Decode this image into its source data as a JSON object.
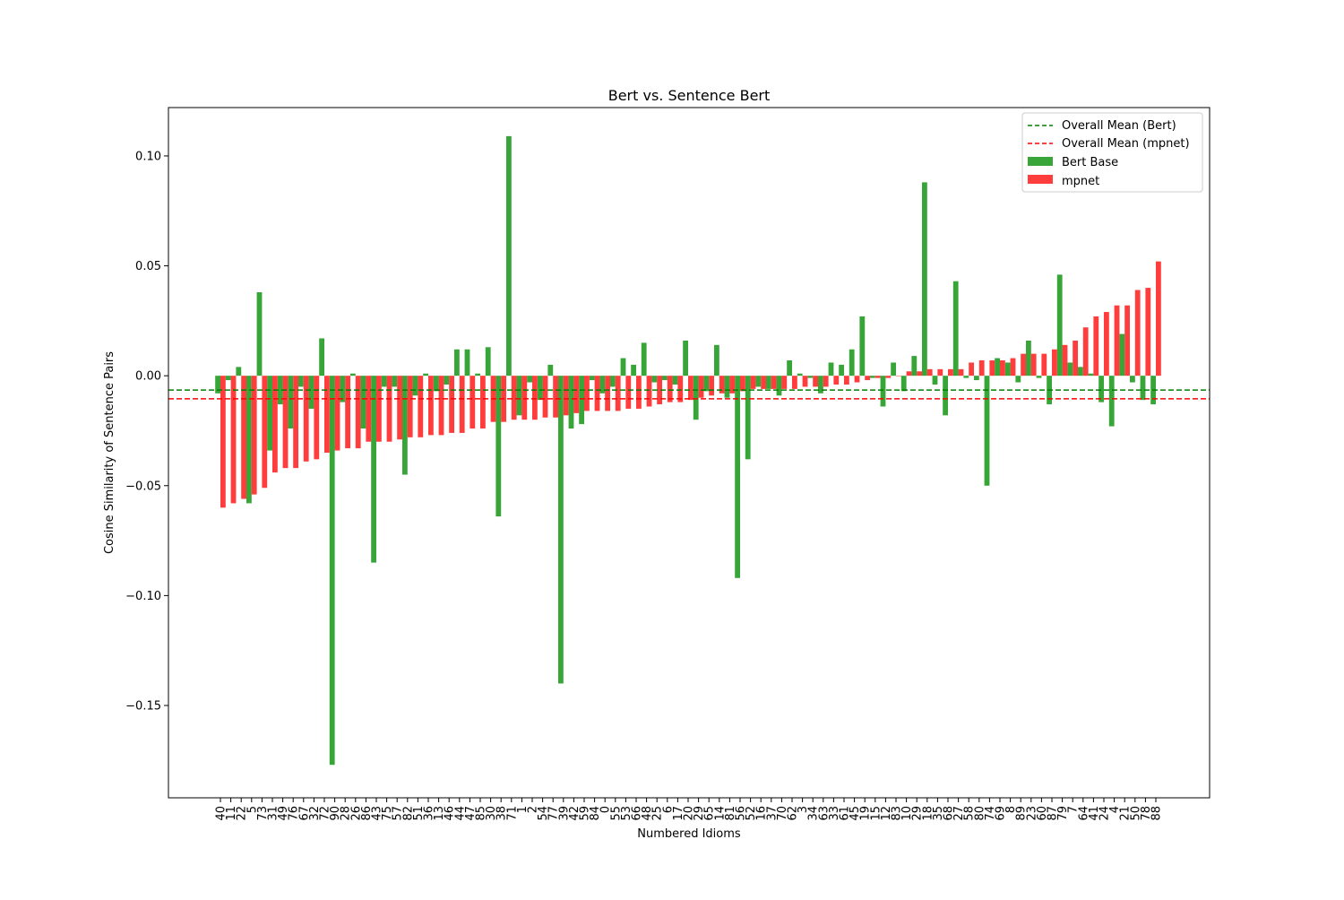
{
  "chart_data": {
    "type": "bar",
    "title": "Bert vs. Sentence Bert",
    "xlabel": "Numbered Idioms",
    "ylabel": "Cosine Similarity of Sentence Pairs",
    "ylim": [
      -0.192,
      0.122
    ],
    "yticks": [
      -0.15,
      -0.1,
      -0.05,
      0.0,
      0.05,
      0.1
    ],
    "ytick_labels": [
      "−0.15",
      "−0.10",
      "−0.05",
      "0.00",
      "0.05",
      "0.10"
    ],
    "grid": false,
    "legend_position": "top-right",
    "categories": [
      "40",
      "11",
      "22",
      "5",
      "73",
      "31",
      "49",
      "76",
      "67",
      "32",
      "72",
      "90",
      "28",
      "26",
      "86",
      "43",
      "75",
      "57",
      "82",
      "51",
      "36",
      "13",
      "46",
      "44",
      "47",
      "85",
      "30",
      "38",
      "71",
      "1",
      "2",
      "54",
      "77",
      "39",
      "42",
      "59",
      "84",
      "0",
      "55",
      "53",
      "66",
      "48",
      "25",
      "6",
      "17",
      "20",
      "29",
      "65",
      "14",
      "81",
      "56",
      "52",
      "16",
      "37",
      "70",
      "62",
      "3",
      "34",
      "63",
      "33",
      "61",
      "45",
      "19",
      "15",
      "12",
      "83",
      "10",
      "29",
      "18",
      "35",
      "68",
      "27",
      "58",
      "80",
      "74",
      "69",
      "8",
      "89",
      "23",
      "60",
      "87",
      "79",
      "7",
      "64",
      "41",
      "24",
      "4",
      "21",
      "50",
      "78",
      "88"
    ],
    "series": [
      {
        "name": "Bert Base",
        "color": "#2ca02c",
        "values": [
          -0.008,
          -0.002,
          0.004,
          -0.058,
          0.038,
          -0.034,
          -0.013,
          -0.024,
          -0.005,
          -0.015,
          0.017,
          -0.177,
          -0.012,
          0.001,
          -0.024,
          -0.085,
          -0.005,
          -0.005,
          -0.045,
          -0.009,
          0.001,
          -0.007,
          -0.004,
          0.012,
          0.012,
          0.001,
          0.013,
          -0.064,
          0.109,
          -0.018,
          -0.003,
          -0.011,
          0.005,
          -0.14,
          -0.024,
          -0.022,
          -0.002,
          -0.008,
          -0.005,
          0.008,
          0.005,
          0.015,
          -0.003,
          -0.002,
          -0.004,
          0.016,
          -0.02,
          -0.007,
          0.014,
          -0.01,
          -0.092,
          -0.038,
          -0.005,
          -0.006,
          -0.009,
          0.007,
          0.001,
          -0.001,
          -0.008,
          0.006,
          0.005,
          0.012,
          0.027,
          -0.001,
          -0.014,
          0.006,
          -0.007,
          0.009,
          0.088,
          -0.004,
          -0.018,
          0.043,
          -0.001,
          -0.002,
          -0.05,
          0.008,
          0.006,
          -0.003,
          0.016,
          -0.001,
          -0.013,
          0.046,
          0.006,
          0.004,
          0.001,
          -0.012,
          -0.023,
          0.019,
          -0.003,
          -0.011,
          -0.013
        ]
      },
      {
        "name": "mpnet",
        "color": "#ff3333",
        "values": [
          -0.06,
          -0.058,
          -0.056,
          -0.054,
          -0.051,
          -0.044,
          -0.042,
          -0.042,
          -0.039,
          -0.038,
          -0.035,
          -0.034,
          -0.033,
          -0.033,
          -0.03,
          -0.03,
          -0.03,
          -0.029,
          -0.028,
          -0.028,
          -0.027,
          -0.027,
          -0.026,
          -0.026,
          -0.024,
          -0.024,
          -0.021,
          -0.021,
          -0.02,
          -0.02,
          -0.02,
          -0.019,
          -0.019,
          -0.018,
          -0.017,
          -0.016,
          -0.016,
          -0.016,
          -0.016,
          -0.015,
          -0.015,
          -0.014,
          -0.013,
          -0.012,
          -0.012,
          -0.011,
          -0.01,
          -0.009,
          -0.008,
          -0.008,
          -0.007,
          -0.006,
          -0.006,
          -0.006,
          -0.006,
          -0.006,
          -0.005,
          -0.005,
          -0.005,
          -0.004,
          -0.004,
          -0.003,
          -0.002,
          -0.001,
          -0.001,
          0.0,
          0.002,
          0.002,
          0.003,
          0.003,
          0.003,
          0.003,
          0.006,
          0.007,
          0.007,
          0.007,
          0.008,
          0.01,
          0.01,
          0.01,
          0.012,
          0.014,
          0.016,
          0.022,
          0.027,
          0.029,
          0.032,
          0.032,
          0.039,
          0.04,
          0.052
        ]
      }
    ],
    "mean_lines": [
      {
        "name": "Overall Mean (Bert)",
        "value": -0.0065,
        "color": "#008000"
      },
      {
        "name": "Overall Mean (mpnet)",
        "value": -0.0105,
        "color": "#ff0000"
      }
    ]
  }
}
